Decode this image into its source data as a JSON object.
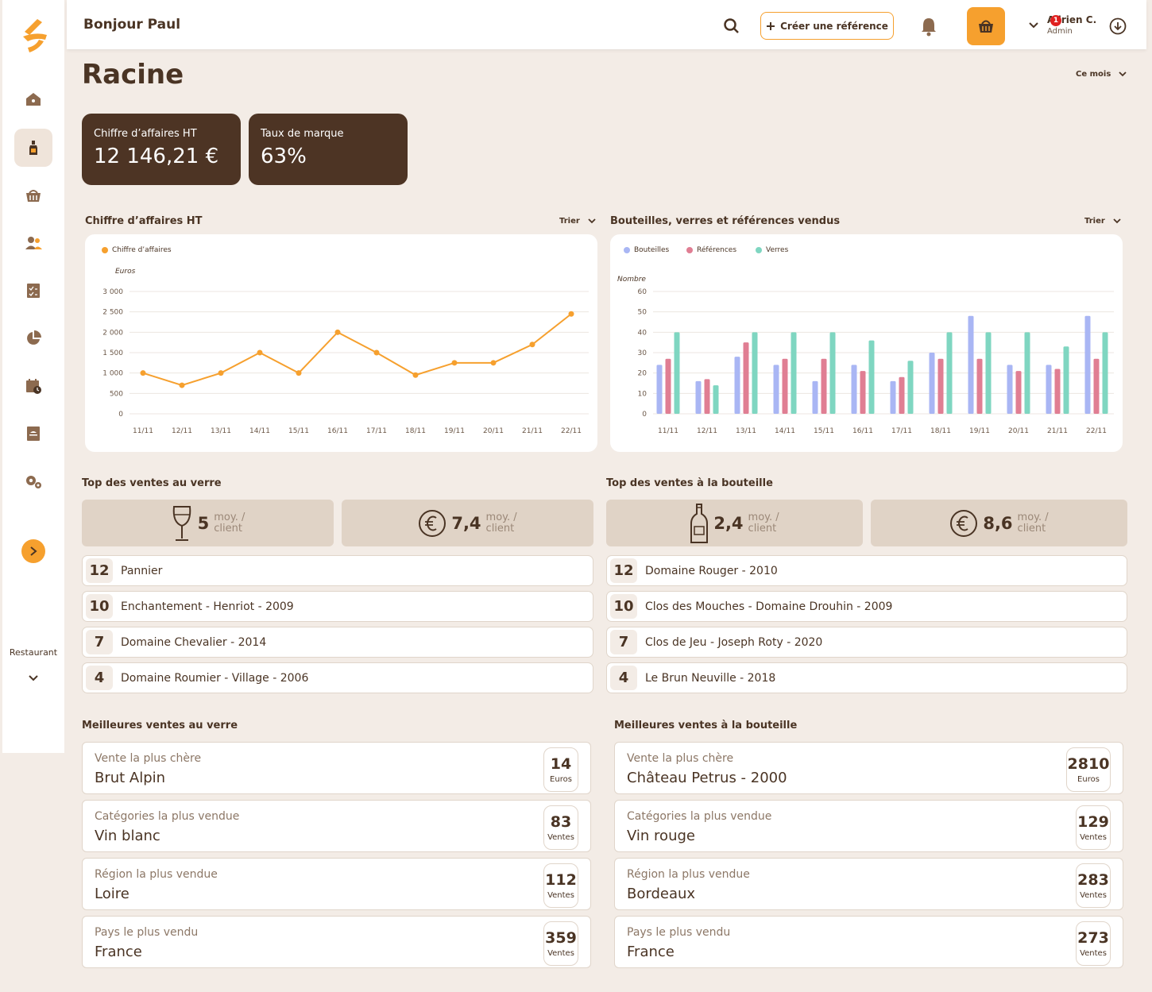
{
  "header": {
    "greeting": "Bonjour Paul",
    "create_label": "Créer une référence",
    "user_name": "Adrien C.",
    "user_role": "Admin",
    "notification_count": "1"
  },
  "sidebar": {
    "items": [
      {
        "icon": "home-icon"
      },
      {
        "icon": "bottle-icon",
        "active": true
      },
      {
        "icon": "basket-icon"
      },
      {
        "icon": "users-icon"
      },
      {
        "icon": "checklist-icon"
      },
      {
        "icon": "pie-chart-icon"
      },
      {
        "icon": "calendar-icon"
      },
      {
        "icon": "menu-book-icon"
      },
      {
        "icon": "settings-icon"
      }
    ],
    "restaurant_label": "Restaurant"
  },
  "page": {
    "title": "Racine",
    "period": "Ce mois",
    "sort_label": "Trier"
  },
  "kpis": [
    {
      "label": "Chiffre d’affaires HT",
      "value": "12 146,21 €"
    },
    {
      "label": "Taux de marque",
      "value": "63%"
    }
  ],
  "colors": {
    "accent": "#f6a02e",
    "dark": "#4d3424",
    "bouteilles": "#a9b6f4",
    "references": "#e07e93",
    "verres": "#7fd6c1"
  },
  "chart_data": [
    {
      "type": "line",
      "title": "Chiffre d’affaires HT",
      "ylabel": "Euros",
      "x": [
        "11/11",
        "12/11",
        "13/11",
        "14/11",
        "15/11",
        "16/11",
        "17/11",
        "18/11",
        "19/11",
        "20/11",
        "21/11",
        "22/11"
      ],
      "series": [
        {
          "name": "Chiffre d’affaires",
          "values": [
            1000,
            700,
            1000,
            1500,
            1000,
            2000,
            1500,
            950,
            1250,
            1250,
            1700,
            2450
          ]
        }
      ],
      "ylim": [
        0,
        3000
      ],
      "yticks": [
        "0",
        "500",
        "1 000",
        "1 500",
        "2 000",
        "2 500",
        "3 000"
      ],
      "legend": "top-left",
      "grid": true
    },
    {
      "type": "bar",
      "title": "Bouteilles, verres et références vendus",
      "ylabel": "Nombre",
      "categories": [
        "11/11",
        "12/11",
        "13/11",
        "14/11",
        "15/11",
        "16/11",
        "17/11",
        "18/11",
        "19/11",
        "20/11",
        "21/11",
        "22/11"
      ],
      "series": [
        {
          "name": "Bouteilles",
          "values": [
            24,
            16,
            28,
            24,
            16,
            24,
            16,
            30,
            48,
            24,
            24,
            48
          ]
        },
        {
          "name": "Références",
          "values": [
            27,
            17,
            35,
            27,
            27,
            21,
            18,
            27,
            27,
            21,
            22,
            27
          ]
        },
        {
          "name": "Verres",
          "values": [
            40,
            14,
            40,
            40,
            40,
            36,
            26,
            40,
            40,
            40,
            33,
            40
          ]
        }
      ],
      "ylim": [
        0,
        60
      ],
      "yticks": [
        "0",
        "10",
        "20",
        "30",
        "40",
        "50",
        "60"
      ],
      "legend": "top-left",
      "grid": true
    }
  ],
  "top_verre": {
    "title": "Top des ventes au verre",
    "stats": [
      {
        "icon": "wine-glass-icon",
        "value": "5",
        "unit1": "moy. /",
        "unit2": "client"
      },
      {
        "icon": "euro-icon",
        "value": "7,4",
        "unit1": "moy. /",
        "unit2": "client"
      }
    ],
    "items": [
      {
        "rank": "12",
        "name": "Pannier"
      },
      {
        "rank": "10",
        "name": "Enchantement - Henriot - 2009"
      },
      {
        "rank": "7",
        "name": "Domaine Chevalier - 2014"
      },
      {
        "rank": "4",
        "name": "Domaine Roumier - Village - 2006"
      }
    ]
  },
  "top_bouteille": {
    "title": "Top des ventes à la bouteille",
    "stats": [
      {
        "icon": "bottle-icon",
        "value": "2,4",
        "unit1": "moy. /",
        "unit2": "client"
      },
      {
        "icon": "euro-icon",
        "value": "8,6",
        "unit1": "moy. /",
        "unit2": "client"
      }
    ],
    "items": [
      {
        "rank": "12",
        "name": "Domaine Rouger - 2010"
      },
      {
        "rank": "10",
        "name": "Clos des Mouches - Domaine Drouhin - 2009"
      },
      {
        "rank": "7",
        "name": "Clos de Jeu - Joseph Roty - 2020"
      },
      {
        "rank": "4",
        "name": "Le Brun Neuville - 2018"
      }
    ]
  },
  "best_verre": {
    "title": "Meilleures ventes au verre",
    "rows": [
      {
        "label": "Vente la plus chère",
        "value": "Brut Alpin",
        "num": "14",
        "unit": "Euros"
      },
      {
        "label": "Catégories la plus vendue",
        "value": "Vin blanc",
        "num": "83",
        "unit": "Ventes"
      },
      {
        "label": "Région la plus vendue",
        "value": "Loire",
        "num": "112",
        "unit": "Ventes"
      },
      {
        "label": "Pays le plus vendu",
        "value": "France",
        "num": "359",
        "unit": "Ventes"
      }
    ]
  },
  "best_bouteille": {
    "title": "Meilleures ventes à la bouteille",
    "rows": [
      {
        "label": "Vente la plus chère",
        "value": "Château Petrus - 2000",
        "num": "2810",
        "unit": "Euros"
      },
      {
        "label": "Catégories la plus vendue",
        "value": "Vin rouge",
        "num": "129",
        "unit": "Ventes"
      },
      {
        "label": "Région la plus vendue",
        "value": "Bordeaux",
        "num": "283",
        "unit": "Ventes"
      },
      {
        "label": "Pays le plus vendu",
        "value": "France",
        "num": "273",
        "unit": "Ventes"
      }
    ]
  }
}
